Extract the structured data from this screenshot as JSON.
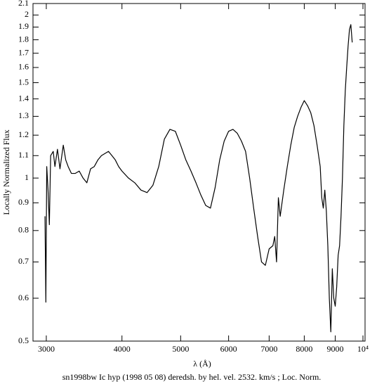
{
  "chart_data": {
    "type": "line",
    "title": "sn1998bw Ic hyp (1998 05 08) deredsh. by hel. vel.  2532. km/s ;  Loc. Norm.",
    "x_label": "λ (Å)",
    "y_label": "Locally Normalized Flux",
    "xscale": "log",
    "yscale": "log",
    "xlim": [
      2852,
      10080
    ],
    "ylim": [
      0.5,
      2.1
    ],
    "xticks": [
      3000,
      4000,
      5000,
      6000,
      7000,
      8000,
      9000,
      {
        "value": 10000,
        "label": "10⁴"
      }
    ],
    "yticks": [
      0.5,
      0.6,
      0.7,
      0.8,
      0.9,
      1,
      1.1,
      1.2,
      1.3,
      1.4,
      1.5,
      1.6,
      1.7,
      1.8,
      1.9,
      2,
      2.1
    ],
    "color": "#000000",
    "x": [
      2985,
      2995,
      3005,
      3020,
      3035,
      3050,
      3080,
      3100,
      3130,
      3160,
      3200,
      3230,
      3260,
      3300,
      3350,
      3400,
      3450,
      3500,
      3550,
      3600,
      3650,
      3700,
      3800,
      3850,
      3900,
      3950,
      4000,
      4100,
      4200,
      4300,
      4400,
      4500,
      4600,
      4700,
      4800,
      4900,
      5000,
      5100,
      5200,
      5300,
      5400,
      5500,
      5600,
      5700,
      5800,
      5900,
      6000,
      6100,
      6200,
      6300,
      6400,
      6500,
      6600,
      6700,
      6800,
      6900,
      7000,
      7100,
      7150,
      7200,
      7250,
      7300,
      7400,
      7500,
      7600,
      7700,
      7800,
      7900,
      8000,
      8100,
      8200,
      8300,
      8400,
      8500,
      8550,
      8600,
      8650,
      8700,
      8750,
      8800,
      8850,
      8900,
      8950,
      9000,
      9050,
      9100,
      9150,
      9200,
      9250,
      9300,
      9350,
      9400,
      9450,
      9500,
      9550,
      9600
    ],
    "y": [
      0.85,
      0.59,
      1.05,
      0.95,
      0.82,
      1.1,
      1.12,
      1.05,
      1.13,
      1.04,
      1.15,
      1.08,
      1.05,
      1.02,
      1.02,
      1.03,
      1.0,
      0.98,
      1.04,
      1.05,
      1.08,
      1.1,
      1.12,
      1.1,
      1.08,
      1.05,
      1.03,
      1.0,
      0.98,
      0.95,
      0.94,
      0.97,
      1.05,
      1.18,
      1.23,
      1.22,
      1.15,
      1.08,
      1.03,
      0.98,
      0.93,
      0.89,
      0.88,
      0.96,
      1.08,
      1.17,
      1.22,
      1.23,
      1.21,
      1.17,
      1.12,
      1.0,
      0.88,
      0.78,
      0.7,
      0.69,
      0.74,
      0.75,
      0.78,
      0.7,
      0.92,
      0.85,
      0.95,
      1.05,
      1.15,
      1.24,
      1.3,
      1.35,
      1.39,
      1.36,
      1.32,
      1.25,
      1.15,
      1.05,
      0.92,
      0.88,
      0.95,
      0.87,
      0.75,
      0.6,
      0.52,
      0.68,
      0.6,
      0.58,
      0.63,
      0.72,
      0.75,
      0.85,
      1.0,
      1.25,
      1.45,
      1.6,
      1.75,
      1.88,
      1.92,
      1.78
    ]
  }
}
